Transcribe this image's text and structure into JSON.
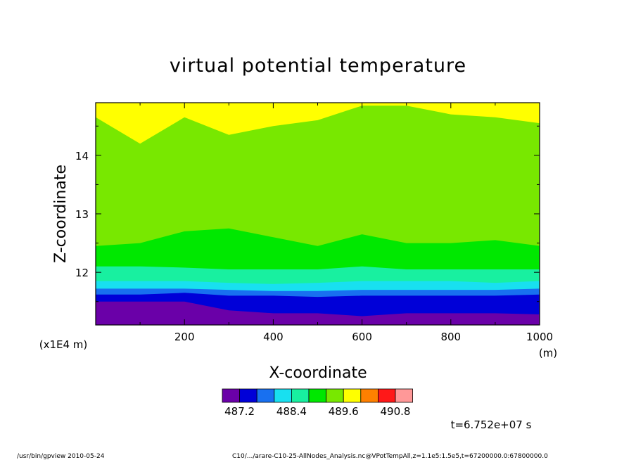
{
  "chart_data": {
    "type": "heatmap",
    "title": "virtual potential temperature",
    "xlabel": "X-coordinate",
    "ylabel": "Z-coordinate",
    "x_unit": "(m)",
    "y_scale_note": "(x1E4 m)",
    "xlim": [
      0,
      1000
    ],
    "ylim": [
      11.1,
      14.9
    ],
    "x_ticks": [
      200,
      400,
      600,
      800,
      1000
    ],
    "y_ticks": [
      12,
      13,
      14
    ],
    "x_tick_labels": [
      "200",
      "400",
      "600",
      "800",
      "1000"
    ],
    "y_tick_labels": [
      "12",
      "13",
      "14"
    ],
    "colorbar": {
      "colors": [
        "#6a00a8",
        "#0000d8",
        "#1870f0",
        "#18e0f0",
        "#18f0a0",
        "#00e800",
        "#78e800",
        "#ffff00",
        "#ff8000",
        "#ff1818",
        "#ff9898"
      ],
      "labels": [
        "487.2",
        "488.4",
        "489.6",
        "490.8"
      ],
      "label_positions": [
        1,
        4,
        7,
        10
      ]
    },
    "contour_bands": [
      {
        "color": "#6a00a8",
        "z_top": [
          11.5,
          11.5,
          11.5,
          11.35,
          11.3,
          11.3,
          11.25,
          11.3,
          11.3,
          11.3,
          11.28
        ]
      },
      {
        "color": "#0000d8",
        "z_top": [
          11.62,
          11.62,
          11.65,
          11.6,
          11.6,
          11.58,
          11.6,
          11.6,
          11.6,
          11.6,
          11.62
        ]
      },
      {
        "color": "#1870f0",
        "z_top": [
          11.72,
          11.72,
          11.72,
          11.7,
          11.68,
          11.68,
          11.7,
          11.7,
          11.7,
          11.7,
          11.72
        ]
      },
      {
        "color": "#18e0f0",
        "z_top": [
          11.85,
          11.85,
          11.85,
          11.82,
          11.8,
          11.82,
          11.85,
          11.85,
          11.85,
          11.82,
          11.85
        ]
      },
      {
        "color": "#18f0a0",
        "z_top": [
          12.1,
          12.1,
          12.08,
          12.05,
          12.05,
          12.05,
          12.1,
          12.05,
          12.05,
          12.05,
          12.05
        ]
      },
      {
        "color": "#00e800",
        "z_top": [
          12.45,
          12.5,
          12.7,
          12.75,
          12.6,
          12.45,
          12.65,
          12.5,
          12.5,
          12.55,
          12.45
        ]
      },
      {
        "color": "#78e800",
        "z_top": [
          14.65,
          14.2,
          14.65,
          14.35,
          14.5,
          14.6,
          14.85,
          14.85,
          14.7,
          14.65,
          14.55
        ]
      },
      {
        "color": "#ffff00",
        "z_top": [
          14.9,
          14.9,
          14.9,
          14.9,
          14.9,
          14.9,
          14.9,
          14.9,
          14.9,
          14.9,
          14.9
        ]
      }
    ],
    "contour_x": [
      0,
      100,
      200,
      300,
      400,
      500,
      600,
      700,
      800,
      900,
      1000
    ],
    "time_label": "t=6.752e+07 s"
  },
  "footer": {
    "left": "/usr/bin/gpview  2010-05-24",
    "right": "C10/.../arare-C10-25-AllNodes_Analysis.nc@VPotTempAll,z=1.1e5:1.5e5,t=67200000.0:67800000.0"
  }
}
